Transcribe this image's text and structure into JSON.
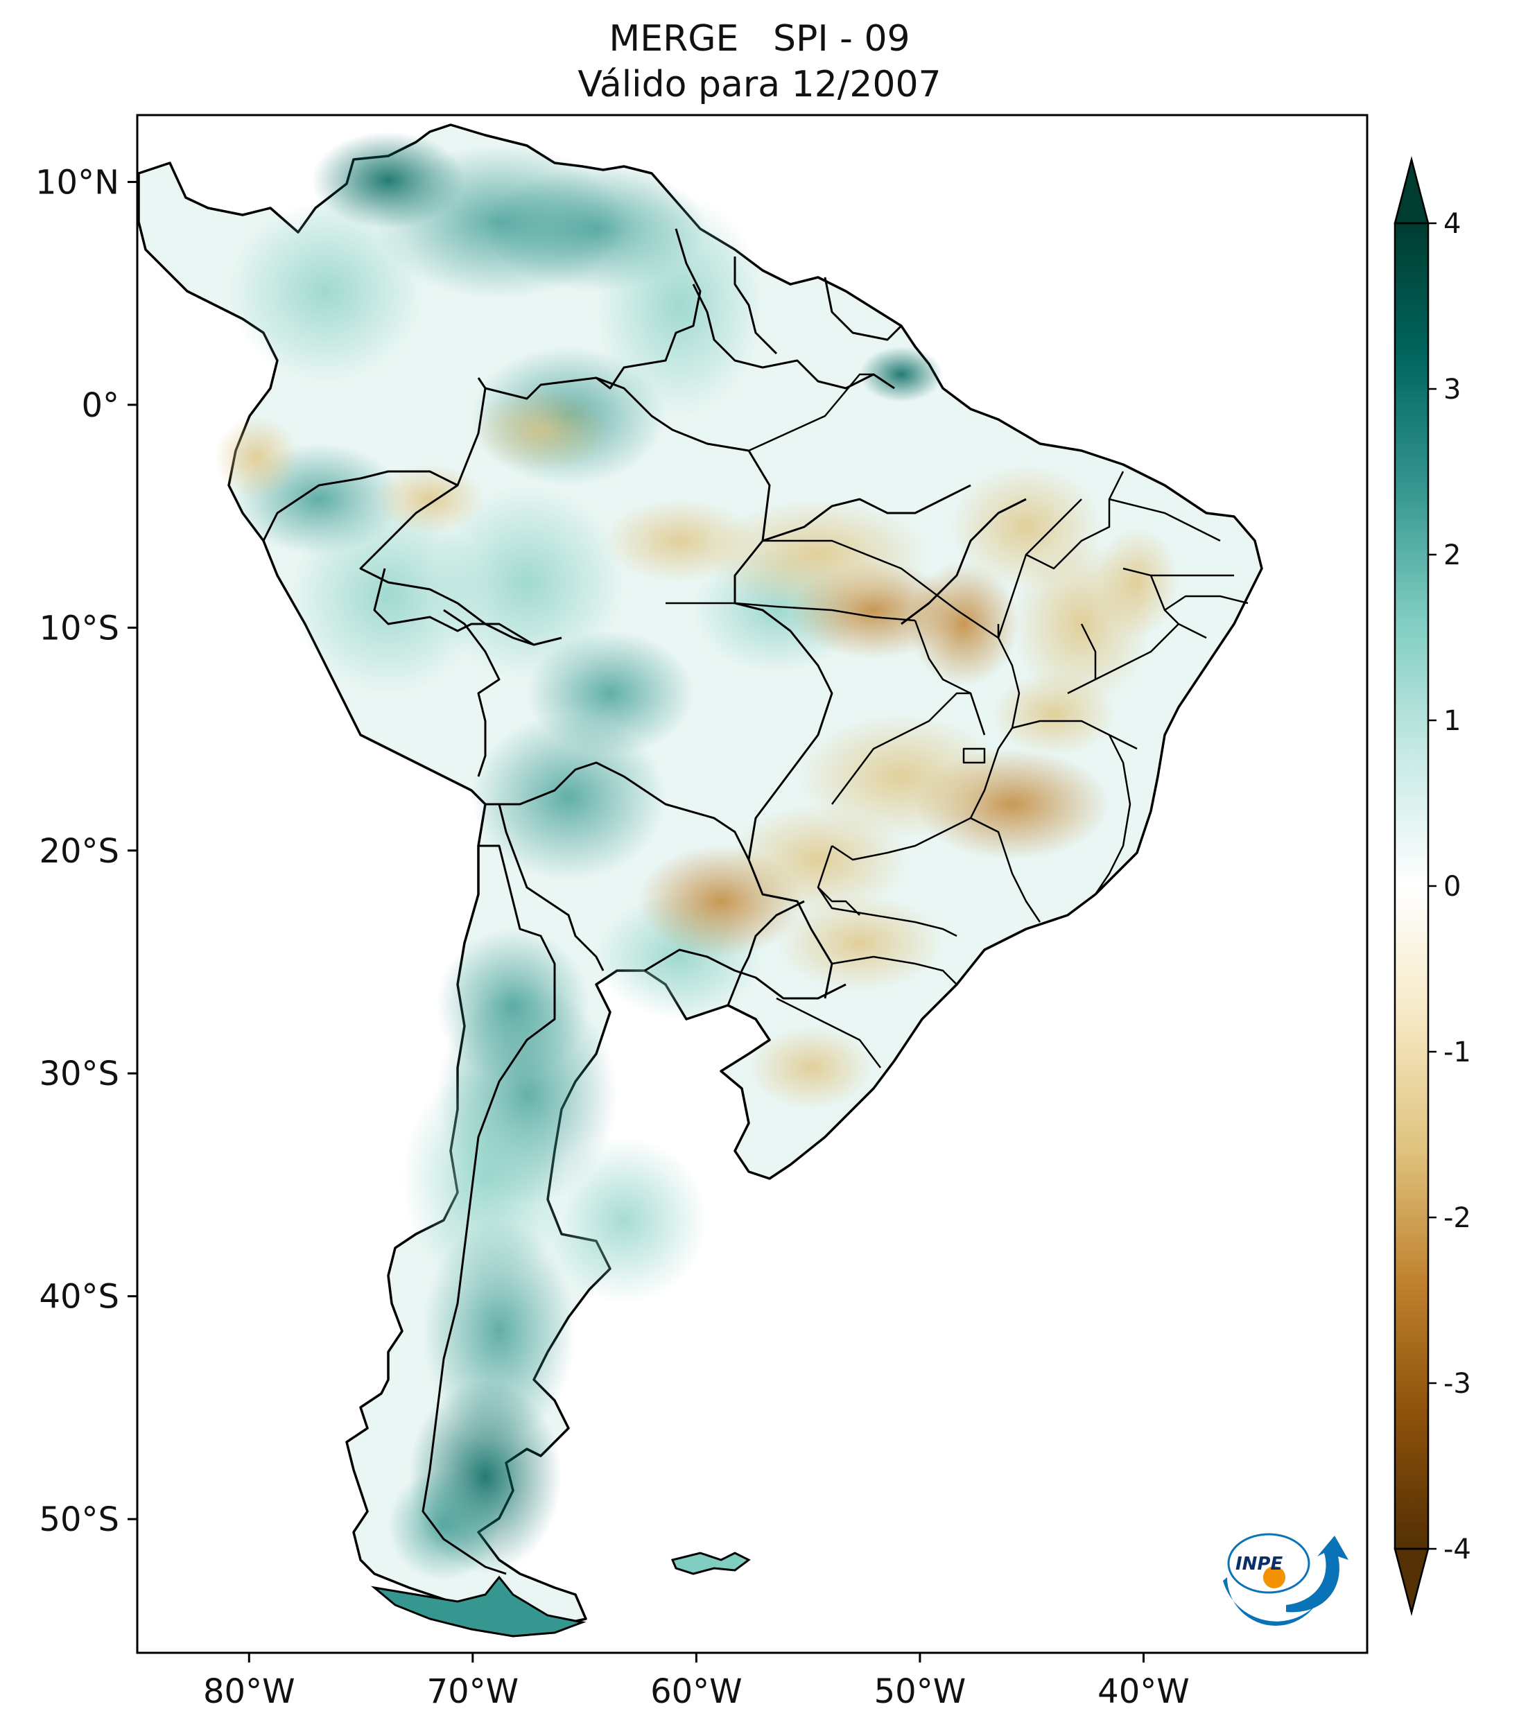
{
  "title": {
    "line1": "MERGE   SPI - 09",
    "line2": "Válido para 12/2007"
  },
  "map": {
    "lon_range": [
      -85,
      -30
    ],
    "lat_range": [
      -56,
      13
    ],
    "x_ticks": [
      {
        "lon": -80,
        "label": "80°W"
      },
      {
        "lon": -70,
        "label": "70°W"
      },
      {
        "lon": -60,
        "label": "60°W"
      },
      {
        "lon": -50,
        "label": "50°W"
      },
      {
        "lon": -40,
        "label": "40°W"
      }
    ],
    "y_ticks": [
      {
        "lat": 10,
        "label": "10°N"
      },
      {
        "lat": 0,
        "label": "0°"
      },
      {
        "lat": -10,
        "label": "10°S"
      },
      {
        "lat": -20,
        "label": "20°S"
      },
      {
        "lat": -30,
        "label": "30°S"
      },
      {
        "lat": -40,
        "label": "40°S"
      },
      {
        "lat": -50,
        "label": "50°S"
      }
    ]
  },
  "colorbar": {
    "min": -4,
    "max": 4,
    "ticks": [
      {
        "value": 4,
        "label": "4"
      },
      {
        "value": 3,
        "label": "3"
      },
      {
        "value": 2,
        "label": "2"
      },
      {
        "value": 1,
        "label": "1"
      },
      {
        "value": 0,
        "label": "0"
      },
      {
        "value": -1,
        "label": "-1"
      },
      {
        "value": -2,
        "label": "-2"
      },
      {
        "value": -3,
        "label": "-3"
      },
      {
        "value": -4,
        "label": "-4"
      }
    ],
    "colors": [
      "#543005",
      "#8c510a",
      "#bf812d",
      "#dfc27d",
      "#f6e8c3",
      "#ffffff",
      "#c7eae5",
      "#80cdc1",
      "#35978f",
      "#01665e",
      "#003c30"
    ]
  },
  "logo": {
    "text": "INPE",
    "colors": {
      "blue": "#0a73b7",
      "orange": "#f39200"
    }
  }
}
